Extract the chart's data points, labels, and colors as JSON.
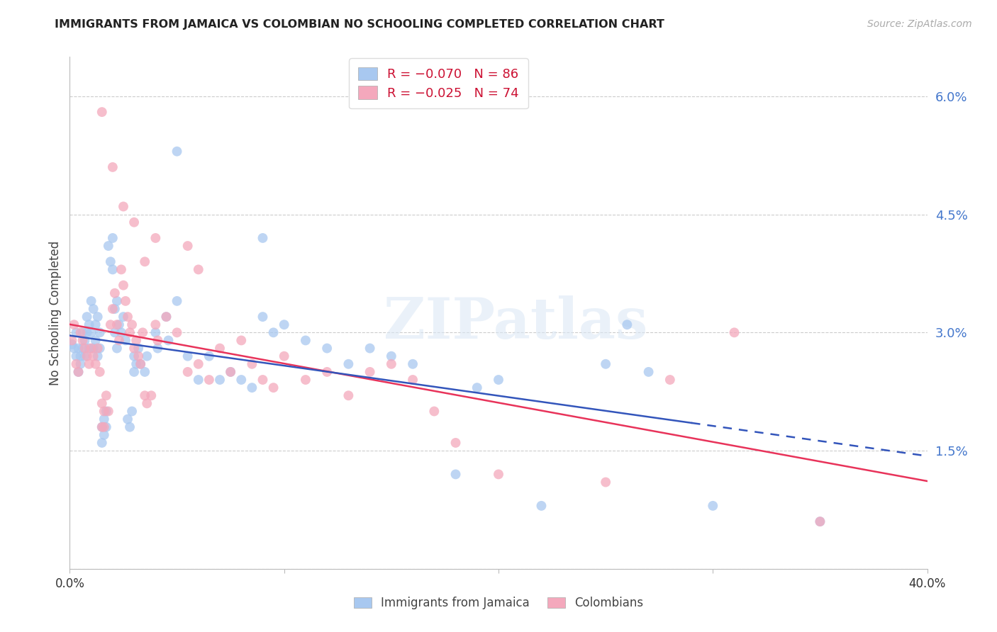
{
  "title": "IMMIGRANTS FROM JAMAICA VS COLOMBIAN NO SCHOOLING COMPLETED CORRELATION CHART",
  "source_text": "Source: ZipAtlas.com",
  "ylabel": "No Schooling Completed",
  "xlim": [
    0.0,
    0.4
  ],
  "ylim": [
    0.0,
    0.065
  ],
  "yticks": [
    0.0,
    0.015,
    0.03,
    0.045,
    0.06
  ],
  "ytick_labels": [
    "",
    "1.5%",
    "3.0%",
    "4.5%",
    "6.0%"
  ],
  "xticks": [
    0.0,
    0.1,
    0.2,
    0.3,
    0.4
  ],
  "xtick_labels": [
    "0.0%",
    "",
    "",
    "",
    "40.0%"
  ],
  "jamaica_color": "#a8c8f0",
  "colombia_color": "#f4a8bc",
  "jamaica_line_color": "#3355bb",
  "colombia_line_color": "#e8335a",
  "jamaica_r": -0.07,
  "jamaica_n": 86,
  "colombia_r": -0.025,
  "colombia_n": 74,
  "watermark": "ZIPatlas",
  "jamaica_points": [
    [
      0.001,
      0.0285
    ],
    [
      0.002,
      0.028
    ],
    [
      0.003,
      0.03
    ],
    [
      0.003,
      0.027
    ],
    [
      0.004,
      0.028
    ],
    [
      0.004,
      0.025
    ],
    [
      0.005,
      0.027
    ],
    [
      0.005,
      0.026
    ],
    [
      0.006,
      0.03
    ],
    [
      0.006,
      0.028
    ],
    [
      0.007,
      0.029
    ],
    [
      0.007,
      0.027
    ],
    [
      0.008,
      0.032
    ],
    [
      0.008,
      0.03
    ],
    [
      0.009,
      0.031
    ],
    [
      0.009,
      0.028
    ],
    [
      0.01,
      0.034
    ],
    [
      0.01,
      0.03
    ],
    [
      0.011,
      0.033
    ],
    [
      0.011,
      0.028
    ],
    [
      0.012,
      0.031
    ],
    [
      0.012,
      0.029
    ],
    [
      0.013,
      0.032
    ],
    [
      0.013,
      0.027
    ],
    [
      0.014,
      0.03
    ],
    [
      0.014,
      0.028
    ],
    [
      0.015,
      0.018
    ],
    [
      0.015,
      0.016
    ],
    [
      0.016,
      0.019
    ],
    [
      0.016,
      0.017
    ],
    [
      0.017,
      0.02
    ],
    [
      0.017,
      0.018
    ],
    [
      0.018,
      0.041
    ],
    [
      0.019,
      0.039
    ],
    [
      0.02,
      0.042
    ],
    [
      0.02,
      0.038
    ],
    [
      0.021,
      0.033
    ],
    [
      0.021,
      0.03
    ],
    [
      0.022,
      0.034
    ],
    [
      0.022,
      0.028
    ],
    [
      0.023,
      0.031
    ],
    [
      0.024,
      0.03
    ],
    [
      0.025,
      0.032
    ],
    [
      0.026,
      0.029
    ],
    [
      0.027,
      0.019
    ],
    [
      0.028,
      0.018
    ],
    [
      0.029,
      0.02
    ],
    [
      0.03,
      0.027
    ],
    [
      0.03,
      0.025
    ],
    [
      0.031,
      0.026
    ],
    [
      0.032,
      0.028
    ],
    [
      0.033,
      0.026
    ],
    [
      0.035,
      0.025
    ],
    [
      0.036,
      0.027
    ],
    [
      0.04,
      0.03
    ],
    [
      0.041,
      0.028
    ],
    [
      0.045,
      0.032
    ],
    [
      0.046,
      0.029
    ],
    [
      0.05,
      0.034
    ],
    [
      0.055,
      0.027
    ],
    [
      0.06,
      0.024
    ],
    [
      0.065,
      0.027
    ],
    [
      0.07,
      0.024
    ],
    [
      0.075,
      0.025
    ],
    [
      0.08,
      0.024
    ],
    [
      0.085,
      0.023
    ],
    [
      0.09,
      0.032
    ],
    [
      0.095,
      0.03
    ],
    [
      0.1,
      0.031
    ],
    [
      0.11,
      0.029
    ],
    [
      0.12,
      0.028
    ],
    [
      0.13,
      0.026
    ],
    [
      0.14,
      0.028
    ],
    [
      0.15,
      0.027
    ],
    [
      0.16,
      0.026
    ],
    [
      0.05,
      0.053
    ],
    [
      0.09,
      0.042
    ],
    [
      0.18,
      0.012
    ],
    [
      0.22,
      0.008
    ],
    [
      0.3,
      0.008
    ],
    [
      0.35,
      0.006
    ],
    [
      0.19,
      0.023
    ],
    [
      0.2,
      0.024
    ],
    [
      0.25,
      0.026
    ],
    [
      0.26,
      0.031
    ],
    [
      0.27,
      0.025
    ]
  ],
  "colombia_points": [
    [
      0.001,
      0.029
    ],
    [
      0.002,
      0.031
    ],
    [
      0.003,
      0.026
    ],
    [
      0.004,
      0.025
    ],
    [
      0.005,
      0.03
    ],
    [
      0.006,
      0.029
    ],
    [
      0.007,
      0.028
    ],
    [
      0.008,
      0.027
    ],
    [
      0.009,
      0.026
    ],
    [
      0.01,
      0.028
    ],
    [
      0.011,
      0.027
    ],
    [
      0.012,
      0.026
    ],
    [
      0.013,
      0.028
    ],
    [
      0.014,
      0.025
    ],
    [
      0.015,
      0.021
    ],
    [
      0.015,
      0.018
    ],
    [
      0.016,
      0.02
    ],
    [
      0.016,
      0.018
    ],
    [
      0.017,
      0.022
    ],
    [
      0.018,
      0.02
    ],
    [
      0.019,
      0.031
    ],
    [
      0.02,
      0.033
    ],
    [
      0.021,
      0.035
    ],
    [
      0.022,
      0.031
    ],
    [
      0.023,
      0.029
    ],
    [
      0.024,
      0.038
    ],
    [
      0.025,
      0.036
    ],
    [
      0.026,
      0.034
    ],
    [
      0.027,
      0.032
    ],
    [
      0.028,
      0.03
    ],
    [
      0.029,
      0.031
    ],
    [
      0.03,
      0.028
    ],
    [
      0.031,
      0.029
    ],
    [
      0.032,
      0.027
    ],
    [
      0.033,
      0.026
    ],
    [
      0.034,
      0.03
    ],
    [
      0.035,
      0.022
    ],
    [
      0.036,
      0.021
    ],
    [
      0.038,
      0.022
    ],
    [
      0.04,
      0.031
    ],
    [
      0.041,
      0.029
    ],
    [
      0.045,
      0.032
    ],
    [
      0.05,
      0.03
    ],
    [
      0.055,
      0.025
    ],
    [
      0.06,
      0.026
    ],
    [
      0.065,
      0.024
    ],
    [
      0.07,
      0.028
    ],
    [
      0.075,
      0.025
    ],
    [
      0.08,
      0.029
    ],
    [
      0.085,
      0.026
    ],
    [
      0.09,
      0.024
    ],
    [
      0.095,
      0.023
    ],
    [
      0.1,
      0.027
    ],
    [
      0.11,
      0.024
    ],
    [
      0.12,
      0.025
    ],
    [
      0.13,
      0.022
    ],
    [
      0.14,
      0.025
    ],
    [
      0.15,
      0.026
    ],
    [
      0.16,
      0.024
    ],
    [
      0.015,
      0.058
    ],
    [
      0.02,
      0.051
    ],
    [
      0.025,
      0.046
    ],
    [
      0.03,
      0.044
    ],
    [
      0.035,
      0.039
    ],
    [
      0.04,
      0.042
    ],
    [
      0.055,
      0.041
    ],
    [
      0.06,
      0.038
    ],
    [
      0.18,
      0.016
    ],
    [
      0.2,
      0.012
    ],
    [
      0.25,
      0.011
    ],
    [
      0.31,
      0.03
    ],
    [
      0.35,
      0.006
    ],
    [
      0.28,
      0.024
    ],
    [
      0.17,
      0.02
    ]
  ]
}
